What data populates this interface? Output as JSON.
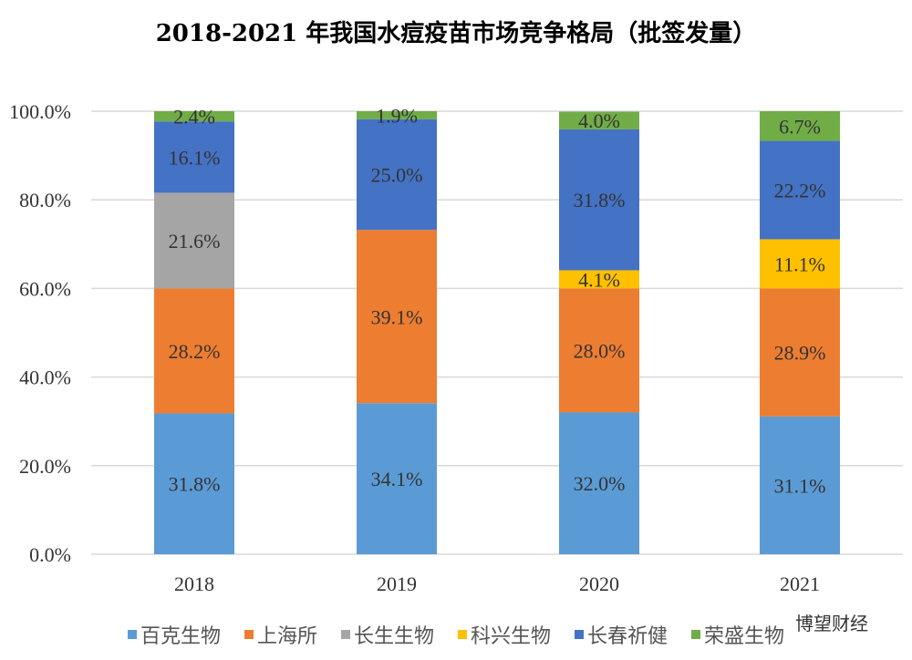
{
  "chart_data": {
    "type": "bar",
    "stacked": true,
    "title": "2018-2021 年我国水痘疫苗市场竞争格局（批签发量）",
    "categories": [
      "2018",
      "2019",
      "2020",
      "2021"
    ],
    "ylim": [
      0,
      100
    ],
    "yticks": [
      "0.0%",
      "20.0%",
      "40.0%",
      "60.0%",
      "80.0%",
      "100.0%"
    ],
    "grid": true,
    "legend_position": "bottom",
    "series": [
      {
        "name": "百克生物",
        "color": "#5B9BD5",
        "values": [
          31.8,
          34.1,
          32.0,
          31.1
        ]
      },
      {
        "name": "上海所",
        "color": "#ED7D31",
        "values": [
          28.2,
          39.1,
          28.0,
          28.9
        ]
      },
      {
        "name": "长生生物",
        "color": "#A5A5A5",
        "values": [
          21.6,
          0,
          0,
          0
        ]
      },
      {
        "name": "科兴生物",
        "color": "#FFC000",
        "values": [
          0,
          0,
          4.1,
          11.1
        ]
      },
      {
        "name": "长春祈健",
        "color": "#4472C4",
        "values": [
          16.1,
          25.0,
          31.8,
          22.2
        ]
      },
      {
        "name": "荣盛生物",
        "color": "#70AD47",
        "values": [
          2.4,
          1.9,
          4.0,
          6.7
        ]
      }
    ]
  },
  "watermark": "博望财经"
}
